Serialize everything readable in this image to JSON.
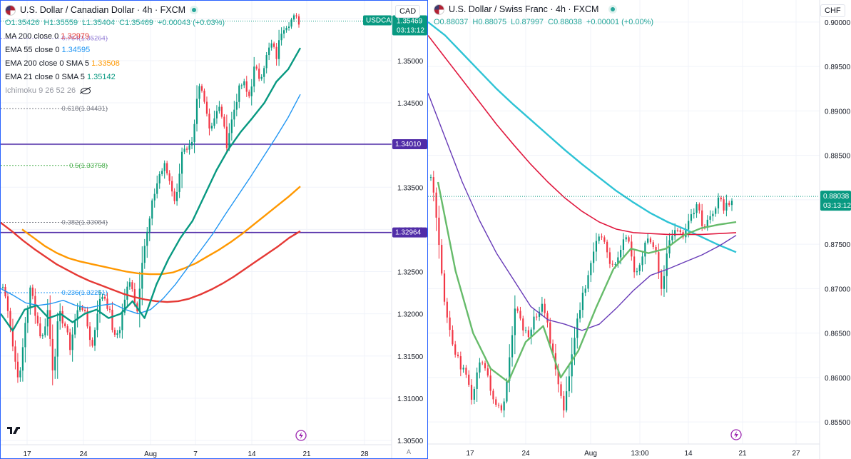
{
  "left": {
    "title": "U.S. Dollar / Canadian Dollar · 4h · FXCM",
    "currency": "CAD",
    "ohlc": {
      "o": "O1.35426",
      "h": "H1.35559",
      "l": "L1.35404",
      "c": "C1.35469",
      "chg": "+0.00043 (+0.03%)"
    },
    "indicators": [
      {
        "label": "MA 200 close 0",
        "value": "1.32979",
        "color": "#e53935"
      },
      {
        "label": "EMA 55 close 0",
        "value": "1.34595",
        "color": "#2196f3"
      },
      {
        "label": "EMA 200 close 0 SMA 5",
        "value": "1.33508",
        "color": "#ff9800"
      },
      {
        "label": "EMA 21 close 0 SMA 5",
        "value": "1.35142",
        "color": "#089981"
      },
      {
        "label": "Ichimoku 9 26 52 26",
        "value": "",
        "color": "#9598a1"
      }
    ],
    "symbol_tag": "USDCAD",
    "price_tag": "1.35469",
    "countdown": "03:13:12",
    "hline_labels": [
      "1.34010",
      "1.32964"
    ],
    "bottom_icon": "tradingview-logo-icon",
    "flash_icon": "lightning-icon",
    "auto_label": "A"
  },
  "right": {
    "title": "U.S. Dollar / Swiss Franc · 4h · FXCM",
    "currency": "CHF",
    "ohlc": {
      "o": "O0.88037",
      "h": "H0.88075",
      "l": "L0.87997",
      "c": "C0.88038",
      "chg": "+0.00001 (+0.00%)"
    },
    "price_tag": "0.88038",
    "countdown": "03:13:12",
    "flash_icon": "lightning-icon"
  },
  "chart_data": [
    {
      "type": "candlestick",
      "symbol": "USDCAD",
      "timeframe": "4h",
      "ylim": [
        1.305,
        1.356
      ],
      "yticks": [
        "1.35500",
        "1.35000",
        "1.34500",
        "1.34000",
        "1.33500",
        "1.33000",
        "1.32500",
        "1.32000",
        "1.31500",
        "1.31000",
        "1.30500"
      ],
      "xticks": [
        "17",
        "24",
        "Aug",
        "7",
        "14",
        "21",
        "28"
      ],
      "fibonacci": [
        {
          "level": "0.764(1.35264)",
          "price": 1.35264
        },
        {
          "level": "0.618(1.34431)",
          "price": 1.34431
        },
        {
          "level": "0.5(1.33758)",
          "price": 1.33758
        },
        {
          "level": "0.382(1.33084)",
          "price": 1.33084
        },
        {
          "level": "0.236(1.32251)",
          "price": 1.32251
        }
      ],
      "horizontal_lines": [
        1.3401,
        1.32964
      ],
      "series": [
        {
          "name": "MA 200 close 0",
          "last": 1.32979,
          "color": "#e53935",
          "values": [
            1.3308,
            1.3298,
            1.3287,
            1.3277,
            1.3268,
            1.3259,
            1.3252,
            1.3245,
            1.3239,
            1.3234,
            1.3229,
            1.3224,
            1.322,
            1.3217,
            1.3215,
            1.3214,
            1.3215,
            1.3218,
            1.3223,
            1.3229,
            1.3236,
            1.3244,
            1.3253,
            1.3262,
            1.3271,
            1.328,
            1.329,
            1.3298
          ]
        },
        {
          "name": "EMA 200 close 0 SMA 5",
          "last": 1.33508,
          "color": "#ff9800",
          "values": [
            1.33,
            1.329,
            1.328,
            1.3272,
            1.3266,
            1.3262,
            1.3259,
            1.3256,
            1.3253,
            1.325,
            1.3248,
            1.3247,
            1.3247,
            1.3249,
            1.3254,
            1.326,
            1.3268,
            1.3276,
            1.3285,
            1.3295,
            1.3306,
            1.3317,
            1.3328,
            1.3339,
            1.3351
          ]
        },
        {
          "name": "EMA 55 close 0",
          "last": 1.34595,
          "color": "#2196f3",
          "values": [
            1.323,
            1.3222,
            1.3213,
            1.321,
            1.3212,
            1.3216,
            1.321,
            1.3207,
            1.321,
            1.3212,
            1.3205,
            1.32,
            1.3205,
            1.3218,
            1.3235,
            1.3255,
            1.3275,
            1.3295,
            1.3318,
            1.334,
            1.3362,
            1.3385,
            1.3408,
            1.3432,
            1.346
          ]
        },
        {
          "name": "EMA 21 close 0 SMA 5",
          "last": 1.35142,
          "color": "#089981",
          "values": [
            1.32,
            1.318,
            1.3205,
            1.321,
            1.3195,
            1.32,
            1.319,
            1.32,
            1.3205,
            1.3195,
            1.32,
            1.3215,
            1.3195,
            1.3235,
            1.3265,
            1.329,
            1.331,
            1.334,
            1.337,
            1.3395,
            1.3415,
            1.3432,
            1.345,
            1.3475,
            1.349,
            1.3515
          ]
        }
      ]
    },
    {
      "type": "candlestick",
      "symbol": "USDCHF",
      "timeframe": "4h",
      "ylim": [
        0.853,
        0.902
      ],
      "yticks": [
        "0.90000",
        "0.89500",
        "0.89000",
        "0.88500",
        "0.88000",
        "0.87500",
        "0.87000",
        "0.86500",
        "0.86000",
        "0.85500"
      ],
      "xticks": [
        "17",
        "24",
        "Aug",
        "13:00",
        "14",
        "21",
        "27"
      ],
      "series": [
        {
          "name": "cyan moving average",
          "color": "#2ec3d5",
          "values": [
            0.9,
            0.8985,
            0.8965,
            0.8945,
            0.8925,
            0.8907,
            0.889,
            0.8873,
            0.8856,
            0.884,
            0.8825,
            0.881,
            0.8797,
            0.8785,
            0.8775,
            0.8767,
            0.8758,
            0.8749,
            0.8741
          ]
        },
        {
          "name": "red moving average",
          "color": "#e0193f",
          "values": [
            0.8985,
            0.896,
            0.8935,
            0.891,
            0.8885,
            0.8862,
            0.884,
            0.882,
            0.8802,
            0.8787,
            0.8775,
            0.8767,
            0.8763,
            0.8762,
            0.8761,
            0.8761,
            0.8761,
            0.8762,
            0.8763
          ]
        },
        {
          "name": "purple moving average",
          "color": "#673ab7",
          "values": [
            0.892,
            0.887,
            0.882,
            0.8777,
            0.874,
            0.871,
            0.868,
            0.8665,
            0.866,
            0.8653,
            0.866,
            0.8678,
            0.8698,
            0.8715,
            0.8722,
            0.873,
            0.8738,
            0.8748,
            0.876
          ]
        },
        {
          "name": "green moving average",
          "color": "#66bb6a",
          "values": [
            0.882,
            0.872,
            0.865,
            0.861,
            0.8595,
            0.864,
            0.8658,
            0.86,
            0.863,
            0.8678,
            0.8722,
            0.8745,
            0.874,
            0.8745,
            0.876,
            0.8768,
            0.8772,
            0.8775
          ]
        }
      ]
    }
  ]
}
